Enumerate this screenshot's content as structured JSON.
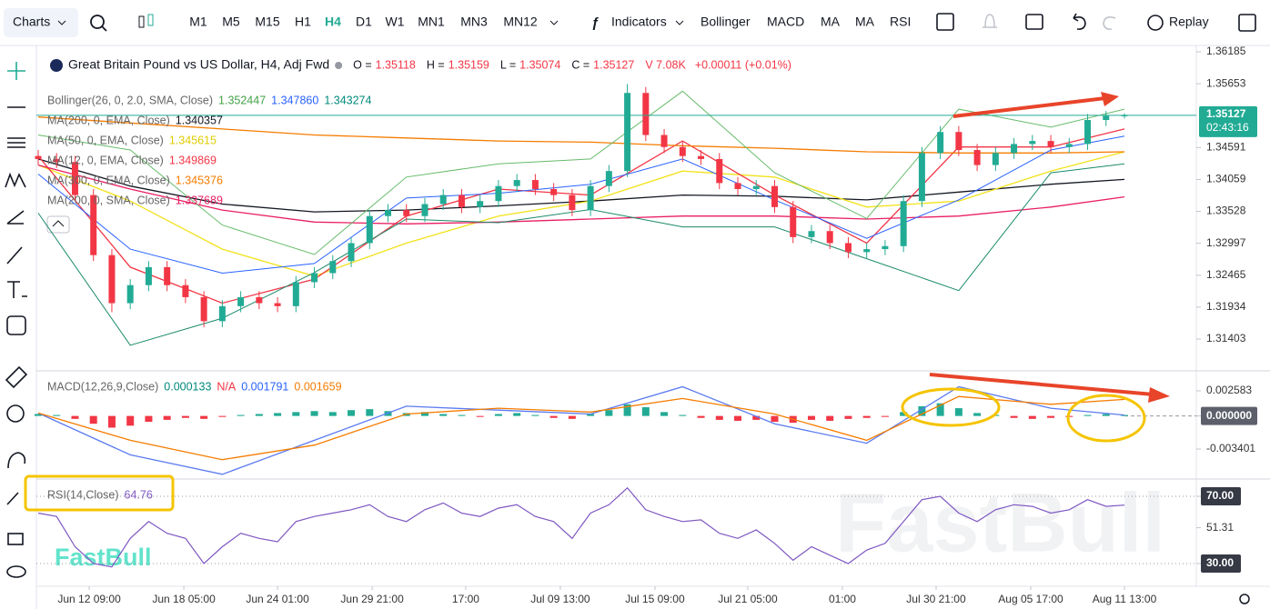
{
  "toolbar": {
    "charts": "Charts",
    "timeframes": [
      "M1",
      "M5",
      "M15",
      "H1",
      "H4",
      "D1",
      "W1",
      "MN1",
      "MN3",
      "MN12"
    ],
    "active_timeframe": "H4",
    "indicators": "Indicators",
    "indicator_buttons": [
      "Bollinger",
      "MACD",
      "MA",
      "MA",
      "RSI"
    ],
    "replay": "Replay"
  },
  "watermarks": [
    "FastBull",
    "FastBull"
  ],
  "chart_data": [
    {
      "type": "candlestick",
      "title": "Great Britain Pound vs US Dollar, H4, Adj Fwd",
      "ohlc_labels": [
        "O =",
        "H =",
        "L =",
        "C ="
      ],
      "volume": "V 7.08K",
      "change": "+0.00011 (+0.01%)",
      "countdown": "02:43:16",
      "up_color": "#22ab94",
      "down_color": "#f23645",
      "open": [
        1.3445,
        1.344,
        1.3435,
        1.338,
        1.328,
        1.32,
        1.323,
        1.326,
        1.323,
        1.321,
        1.317,
        1.3195,
        1.321,
        1.32,
        1.3195,
        1.3235,
        1.325,
        1.327,
        1.33,
        1.3345,
        1.3355,
        1.3345,
        1.3365,
        1.338,
        1.336,
        1.337,
        1.3395,
        1.3405,
        1.339,
        1.338,
        1.3355,
        1.3395,
        1.342,
        1.355,
        1.348,
        1.346,
        1.3445,
        1.344,
        1.34,
        1.339,
        1.3395,
        1.336,
        1.331,
        1.332,
        1.33,
        1.3285,
        1.329,
        1.3295,
        1.337,
        1.345,
        1.3485,
        1.3455,
        1.343,
        1.345,
        1.3465,
        1.347,
        1.346,
        1.3465,
        1.3505,
        1.35118
      ],
      "high": [
        1.3455,
        1.345,
        1.3445,
        1.339,
        1.329,
        1.324,
        1.327,
        1.327,
        1.324,
        1.322,
        1.3205,
        1.322,
        1.322,
        1.321,
        1.3245,
        1.326,
        1.328,
        1.331,
        1.3355,
        1.3365,
        1.3365,
        1.3375,
        1.339,
        1.339,
        1.338,
        1.3405,
        1.3415,
        1.3415,
        1.34,
        1.339,
        1.3405,
        1.343,
        1.3565,
        1.356,
        1.349,
        1.347,
        1.3455,
        1.345,
        1.341,
        1.3405,
        1.3405,
        1.337,
        1.333,
        1.333,
        1.331,
        1.33,
        1.3305,
        1.338,
        1.346,
        1.3495,
        1.3495,
        1.3465,
        1.346,
        1.3475,
        1.348,
        1.348,
        1.3475,
        1.3515,
        1.352,
        1.35159
      ],
      "low": [
        1.343,
        1.3425,
        1.337,
        1.327,
        1.3185,
        1.319,
        1.322,
        1.322,
        1.32,
        1.316,
        1.316,
        1.3185,
        1.319,
        1.3185,
        1.3185,
        1.3225,
        1.324,
        1.326,
        1.329,
        1.3335,
        1.3335,
        1.3335,
        1.3355,
        1.335,
        1.335,
        1.336,
        1.3385,
        1.338,
        1.337,
        1.3345,
        1.3345,
        1.3385,
        1.341,
        1.347,
        1.345,
        1.3435,
        1.343,
        1.339,
        1.338,
        1.338,
        1.335,
        1.33,
        1.33,
        1.329,
        1.3275,
        1.3275,
        1.328,
        1.3285,
        1.336,
        1.344,
        1.3445,
        1.342,
        1.342,
        1.344,
        1.3455,
        1.345,
        1.345,
        1.3455,
        1.3495,
        1.35074
      ],
      "close": [
        1.344,
        1.3435,
        1.338,
        1.328,
        1.32,
        1.323,
        1.326,
        1.323,
        1.321,
        1.317,
        1.3195,
        1.321,
        1.32,
        1.3195,
        1.3235,
        1.325,
        1.327,
        1.33,
        1.3345,
        1.3355,
        1.3345,
        1.3365,
        1.338,
        1.336,
        1.337,
        1.3395,
        1.3405,
        1.339,
        1.338,
        1.3355,
        1.3395,
        1.342,
        1.355,
        1.348,
        1.346,
        1.3445,
        1.344,
        1.34,
        1.339,
        1.3395,
        1.336,
        1.331,
        1.332,
        1.33,
        1.3285,
        1.329,
        1.3295,
        1.337,
        1.345,
        1.3485,
        1.3455,
        1.343,
        1.345,
        1.3465,
        1.347,
        1.346,
        1.3465,
        1.3505,
        1.35118,
        1.35127
      ],
      "xlim": [
        0,
        59
      ],
      "xticks": [
        {
          "value": 2.77,
          "label": "Jun 12 09:00"
        },
        {
          "value": 7.91,
          "label": "Jun 18 05:00"
        },
        {
          "value": 13.0,
          "label": "Jun 24 01:00"
        },
        {
          "value": 18.14,
          "label": "Jun 29 21:00"
        },
        {
          "value": 23.22,
          "label": "17:00"
        },
        {
          "value": 28.36,
          "label": "Jul 09 13:00"
        },
        {
          "value": 33.5,
          "label": "Jul 15 09:00"
        },
        {
          "value": 38.54,
          "label": "Jul 21 05:00"
        },
        {
          "value": 43.68,
          "label": "01:00"
        },
        {
          "value": 48.77,
          "label": "Jul 30 21:00"
        },
        {
          "value": 53.91,
          "label": "Aug 05 17:00"
        },
        {
          "value": 59,
          "label": "Aug 11 13:00"
        }
      ],
      "ylim": [
        1.30873,
        1.36291
      ],
      "yticks": [
        1.36185,
        1.35653,
        1.34591,
        1.34059,
        1.33528,
        1.32997,
        1.32465,
        1.31934,
        1.31403
      ],
      "overlay_x": [
        0,
        5,
        10,
        15,
        20,
        25,
        30,
        35,
        40,
        45,
        50,
        55,
        59
      ],
      "bollinger": {
        "name": "Bollinger(26, 0, 2.0, SMA, Close)",
        "lines": [
          {
            "value_label": "1.352447",
            "label_color": "#43a047",
            "color": "#66bb6a",
            "values": [
              1.348,
              1.3455,
              1.333,
              1.3281,
              1.341,
              1.3432,
              1.344,
              1.3553,
              1.3417,
              1.3341,
              1.3523,
              1.3493,
              1.3523
            ]
          },
          {
            "value_label": "1.347860",
            "label_color": "#2962ff",
            "color": "#2962ff",
            "values": [
              1.3415,
              1.329,
              1.325,
              1.3266,
              1.3375,
              1.3383,
              1.3398,
              1.344,
              1.3372,
              1.3308,
              1.3372,
              1.3455,
              1.3478
            ]
          },
          {
            "value_label": "1.343274",
            "label_color": "#00897b",
            "color": "#1b8a6b",
            "values": [
              1.335,
              1.313,
              1.3175,
              1.3251,
              1.334,
              1.3334,
              1.3356,
              1.3327,
              1.3327,
              1.3274,
              1.3221,
              1.3417,
              1.3432
            ]
          }
        ]
      },
      "moving_averages": [
        {
          "name": "MA(200, 0, EMA, Close)",
          "value_label": "1.340357",
          "color": "#131722",
          "values": [
            1.344,
            1.3395,
            1.3365,
            1.3352,
            1.3355,
            1.3362,
            1.337,
            1.338,
            1.3378,
            1.3372,
            1.3385,
            1.3398,
            1.3406
          ]
        },
        {
          "name": "MA(50, 0, EMA, Close)",
          "value_label": "1.345615",
          "color": "#f2e21b",
          "values": [
            1.343,
            1.337,
            1.329,
            1.3245,
            1.33,
            1.3345,
            1.337,
            1.342,
            1.341,
            1.336,
            1.337,
            1.342,
            1.3452
          ]
        },
        {
          "name": "MA(12, 0, EMA, Close)",
          "value_label": "1.349869",
          "color": "#f23645",
          "values": [
            1.3445,
            1.326,
            1.32,
            1.324,
            1.3345,
            1.339,
            1.338,
            1.347,
            1.338,
            1.33,
            1.346,
            1.346,
            1.349
          ]
        },
        {
          "name": "MA(300, 0, EMA, Close)",
          "value_label": "1.345376",
          "color": "#f57c00",
          "values": [
            1.351,
            1.35,
            1.349,
            1.348,
            1.3475,
            1.347,
            1.3468,
            1.3462,
            1.3458,
            1.3452,
            1.345,
            1.345,
            1.3452
          ]
        },
        {
          "name": "MA(200, 0, SMA, Close)",
          "value_label": "1.337689",
          "color": "#e91e63",
          "values": [
            1.343,
            1.339,
            1.3355,
            1.3335,
            1.3332,
            1.3335,
            1.334,
            1.3345,
            1.3345,
            1.334,
            1.3345,
            1.336,
            1.3377
          ]
        }
      ]
    },
    {
      "type": "macd",
      "title": "MACD(12,26,9,Close)",
      "legend": [
        {
          "label": "0.000133",
          "color": "#00897b"
        },
        {
          "label": "N/A",
          "color": "#f23645"
        },
        {
          "label": "0.001791",
          "color": "#2962ff"
        },
        {
          "label": "0.001659",
          "color": "#f57c00"
        }
      ],
      "up_color": "#22ab94",
      "down_color": "#f23645",
      "histogram": [
        0.0002,
        0.0001,
        -0.0003,
        -0.0008,
        -0.0012,
        -0.001,
        -0.0006,
        -0.0004,
        -0.0002,
        -0.0003,
        -0.0001,
        0.0001,
        0.0002,
        0.0003,
        0.0004,
        0.0005,
        0.0004,
        0.0006,
        0.0007,
        0.0005,
        0.0003,
        0.0004,
        0.0002,
        0.0001,
        -0.0001,
        0.0002,
        0.0003,
        0.0001,
        -0.0002,
        -0.0003,
        0.0002,
        0.0006,
        0.0012,
        0.0009,
        0.0004,
        0.0001,
        -0.0002,
        -0.0004,
        -0.0005,
        -0.0004,
        -0.0006,
        -0.0007,
        -0.0004,
        -0.0005,
        -0.0003,
        -0.0002,
        -0.0001,
        0.0004,
        0.001,
        0.0013,
        0.0008,
        0.0003,
        0.0001,
        -0.0002,
        -0.0003,
        -0.0002,
        -0.0001,
        0.0001,
        0.0002,
        0.0001
      ],
      "series": [
        {
          "color": "#5b7bf0",
          "values": [
            0.0003,
            -0.004,
            -0.006,
            -0.0025,
            0.001,
            0.0006,
            0.0002,
            0.003,
            -0.0008,
            -0.0028,
            0.003,
            0.0008,
            0.0001
          ]
        },
        {
          "color": "#f57c00",
          "values": [
            0.0003,
            -0.0025,
            -0.0045,
            -0.003,
            0.0002,
            0.0008,
            0.0004,
            0.0018,
            0.0002,
            -0.0025,
            0.002,
            0.0012,
            0.0017
          ]
        }
      ],
      "ylim": [
        -0.006487,
        0.004453
      ],
      "yticks": [
        0.002583,
        {
          "value": 0,
          "label": "0.000000"
        },
        -0.003401
      ]
    },
    {
      "type": "line",
      "title": "RSI(14,Close)",
      "color": "#7e57c2",
      "values": [
        60,
        58,
        40,
        30,
        28,
        45,
        55,
        48,
        45,
        30,
        40,
        48,
        45,
        43,
        55,
        58,
        60,
        62,
        65,
        58,
        55,
        62,
        66,
        60,
        58,
        63,
        65,
        58,
        55,
        45,
        60,
        65,
        75,
        62,
        58,
        55,
        56,
        48,
        45,
        50,
        42,
        32,
        40,
        35,
        30,
        38,
        42,
        55,
        68,
        70,
        60,
        55,
        62,
        65,
        64,
        60,
        62,
        68,
        64,
        64.76
      ],
      "ylim": [
        16.49,
        78.65
      ],
      "yticks": [
        {
          "value": 70,
          "label": "70.00"
        },
        51.31,
        {
          "value": 30,
          "label": "30.00"
        }
      ],
      "levels": [
        70,
        30
      ]
    }
  ]
}
